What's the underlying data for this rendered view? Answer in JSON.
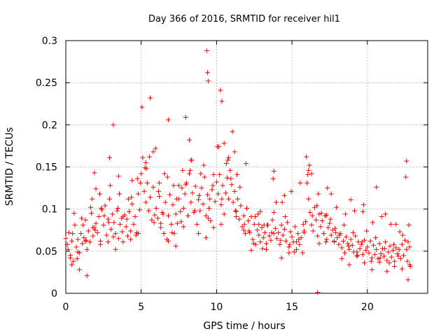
{
  "chart_data": {
    "type": "scatter",
    "title": "Day 366 of 2016, SRMTID for receiver hil1",
    "xlabel": "GPS time / hours",
    "ylabel": "SRMTID / TECUs",
    "xlim": [
      0,
      24
    ],
    "ylim": [
      0,
      0.3
    ],
    "x_ticks": [
      0,
      5,
      10,
      15,
      20
    ],
    "x_tick_labels": [
      "0",
      "5",
      "10",
      "15",
      "20"
    ],
    "y_ticks": [
      0,
      0.05,
      0.1,
      0.15,
      0.2,
      0.25,
      0.3
    ],
    "y_tick_labels": [
      "0",
      "0.05",
      "0.1",
      "0.15",
      "0.2",
      "0.25",
      "0.3"
    ],
    "grid": true,
    "marker": "+",
    "marker_color": "#ff0000",
    "series": [
      {
        "name": "SRMTID",
        "x": [
          0.0,
          0.1,
          0.2,
          0.3,
          0.4,
          0.5,
          0.6,
          0.7,
          0.8,
          0.9,
          1.0,
          1.1,
          1.2,
          1.3,
          1.4,
          1.5,
          1.6,
          1.7,
          1.8,
          1.9,
          2.0,
          2.1,
          2.2,
          2.3,
          2.4,
          2.5,
          2.6,
          2.7,
          2.8,
          2.9,
          3.0,
          3.1,
          3.2,
          3.3,
          3.4,
          3.5,
          3.6,
          3.7,
          3.8,
          3.9,
          4.0,
          4.1,
          4.2,
          4.3,
          4.4,
          4.5,
          4.6,
          4.7,
          4.8,
          4.9,
          5.0,
          5.1,
          5.2,
          5.3,
          5.4,
          5.5,
          5.6,
          5.7,
          5.8,
          5.9,
          6.0,
          6.1,
          6.2,
          6.3,
          6.4,
          6.5,
          6.6,
          6.7,
          6.8,
          6.9,
          7.0,
          7.1,
          7.2,
          7.3,
          7.4,
          7.5,
          7.6,
          7.7,
          7.8,
          7.9,
          8.0,
          8.1,
          8.2,
          8.3,
          8.4,
          8.5,
          8.6,
          8.7,
          8.8,
          8.9,
          9.0,
          9.1,
          9.2,
          9.3,
          9.4,
          9.5,
          9.6,
          9.7,
          9.8,
          9.9,
          10.0,
          10.1,
          10.2,
          10.3,
          10.4,
          10.5,
          10.6,
          10.7,
          10.8,
          10.9,
          11.0,
          11.1,
          11.2,
          11.3,
          11.4,
          11.5,
          11.6,
          11.7,
          11.8,
          11.9,
          12.0,
          12.1,
          12.2,
          12.3,
          12.4,
          12.5,
          12.6,
          12.7,
          12.8,
          12.9,
          13.0,
          13.1,
          13.2,
          13.3,
          13.4,
          13.5,
          13.6,
          13.7,
          13.8,
          13.9,
          14.0,
          14.1,
          14.2,
          14.3,
          14.4,
          14.5,
          14.6,
          14.7,
          14.8,
          14.9,
          15.0,
          15.1,
          15.2,
          15.3,
          15.4,
          15.5,
          15.6,
          15.7,
          15.8,
          15.9,
          16.0,
          16.1,
          16.2,
          16.3,
          16.4,
          16.5,
          16.6,
          16.7,
          16.8,
          16.9,
          17.0,
          17.1,
          17.2,
          17.3,
          17.4,
          17.5,
          17.6,
          17.7,
          17.8,
          17.9,
          18.0,
          18.1,
          18.2,
          18.3,
          18.4,
          18.5,
          18.6,
          18.7,
          18.8,
          18.9,
          19.0,
          19.1,
          19.2,
          19.3,
          19.4,
          19.5,
          19.6,
          19.7,
          19.8,
          19.9,
          20.0,
          20.1,
          20.2,
          20.3,
          20.4,
          20.5,
          20.6,
          20.7,
          20.8,
          20.9,
          21.0,
          21.1,
          21.2,
          21.3,
          21.4,
          21.5,
          21.6,
          21.7,
          21.8,
          21.9,
          22.0,
          22.1,
          22.2,
          22.3,
          22.4,
          22.5,
          22.6,
          22.7,
          22.8,
          0.15,
          0.45,
          0.75,
          1.05,
          1.35,
          1.65,
          1.95,
          2.25,
          2.55,
          2.85,
          3.15,
          3.45,
          3.75,
          4.05,
          4.35,
          4.65,
          4.95,
          5.25,
          5.55,
          5.85,
          6.15,
          6.45,
          6.75,
          7.05,
          7.35,
          7.65,
          7.95,
          8.25,
          8.55,
          8.85,
          9.15,
          9.45,
          9.75,
          10.05,
          10.35,
          10.65,
          10.95,
          11.25,
          11.55,
          11.85,
          12.15,
          12.45,
          12.75,
          13.05,
          13.35,
          13.65,
          13.95,
          14.25,
          14.55,
          14.85,
          15.15,
          15.45,
          15.75,
          16.05,
          16.35,
          16.65,
          16.95,
          17.25,
          17.55,
          17.85,
          18.15,
          18.45,
          18.75,
          19.05,
          19.35,
          19.65,
          19.95,
          20.25,
          20.55,
          20.85,
          21.15,
          21.45,
          21.75,
          22.05,
          22.35,
          22.65,
          0.3,
          0.8,
          1.3,
          1.8,
          2.3,
          2.8,
          3.3,
          3.8,
          4.3,
          4.8,
          5.3,
          5.8,
          6.3,
          6.8,
          7.3,
          7.8,
          8.3,
          8.8,
          9.3,
          9.8,
          10.3,
          10.8,
          11.3,
          11.8,
          12.3,
          12.8,
          13.3,
          13.8,
          14.3,
          14.8,
          15.3,
          15.8,
          16.3,
          16.8,
          17.3,
          17.8,
          18.3,
          18.8,
          19.3,
          19.8,
          20.3,
          20.8,
          21.3,
          21.8,
          22.3,
          22.8,
          0.55,
          1.15,
          1.75,
          2.35,
          2.95,
          3.55,
          4.15,
          4.75,
          5.35,
          5.95,
          6.55,
          7.15,
          7.75,
          8.35,
          8.95,
          9.55,
          10.15,
          10.75,
          11.35,
          11.95,
          12.55,
          13.15,
          13.75,
          14.35,
          14.95,
          15.55,
          16.15,
          16.75,
          17.35,
          17.95,
          18.55,
          19.15,
          19.75,
          20.35,
          20.95,
          21.55,
          22.15,
          22.75,
          5.05,
          5.6,
          7.95,
          9.35,
          9.4,
          9.45,
          10.25,
          10.35,
          11.05,
          3.15,
          16.7,
          22.6,
          22.55,
          11.2,
          10.5,
          6.8,
          8.2,
          15.95,
          16.1,
          2.0,
          1.9,
          2.9,
          3.5,
          4.4,
          6.2,
          7.5,
          12.9,
          13.8,
          14.5,
          17.6,
          18.9,
          19.7,
          20.6,
          21.2,
          21.9,
          0.4,
          0.9,
          1.4,
          22.7,
          22.85
        ],
        "y": [
          0.065,
          0.058,
          0.072,
          0.045,
          0.062,
          0.038,
          0.081,
          0.055,
          0.064,
          0.048,
          0.071,
          0.059,
          0.066,
          0.087,
          0.052,
          0.074,
          0.061,
          0.095,
          0.068,
          0.078,
          0.083,
          0.072,
          0.091,
          0.062,
          0.099,
          0.081,
          0.104,
          0.069,
          0.088,
          0.112,
          0.076,
          0.094,
          0.084,
          0.071,
          0.098,
          0.065,
          0.082,
          0.089,
          0.061,
          0.093,
          0.079,
          0.068,
          0.097,
          0.074,
          0.106,
          0.082,
          0.091,
          0.072,
          0.118,
          0.099,
          0.142,
          0.161,
          0.121,
          0.108,
          0.131,
          0.098,
          0.114,
          0.087,
          0.126,
          0.093,
          0.101,
          0.089,
          0.115,
          0.078,
          0.096,
          0.071,
          0.108,
          0.064,
          0.092,
          0.117,
          0.082,
          0.105,
          0.071,
          0.094,
          0.083,
          0.112,
          0.097,
          0.125,
          0.101,
          0.118,
          0.131,
          0.092,
          0.142,
          0.108,
          0.119,
          0.096,
          0.127,
          0.082,
          0.111,
          0.098,
          0.125,
          0.106,
          0.138,
          0.092,
          0.117,
          0.101,
          0.086,
          0.123,
          0.078,
          0.109,
          0.132,
          0.118,
          0.141,
          0.105,
          0.128,
          0.094,
          0.119,
          0.137,
          0.112,
          0.146,
          0.129,
          0.108,
          0.121,
          0.097,
          0.112,
          0.088,
          0.104,
          0.079,
          0.092,
          0.071,
          0.101,
          0.086,
          0.072,
          0.091,
          0.064,
          0.082,
          0.058,
          0.075,
          0.069,
          0.061,
          0.078,
          0.066,
          0.072,
          0.059,
          0.081,
          0.068,
          0.063,
          0.087,
          0.071,
          0.077,
          0.065,
          0.072,
          0.058,
          0.081,
          0.069,
          0.076,
          0.062,
          0.084,
          0.055,
          0.073,
          0.067,
          0.061,
          0.079,
          0.052,
          0.071,
          0.058,
          0.066,
          0.048,
          0.072,
          0.085,
          0.131,
          0.112,
          0.096,
          0.081,
          0.074,
          0.102,
          0.087,
          0.068,
          0.094,
          0.079,
          0.086,
          0.071,
          0.092,
          0.064,
          0.078,
          0.083,
          0.069,
          0.075,
          0.061,
          0.072,
          0.066,
          0.058,
          0.071,
          0.054,
          0.062,
          0.048,
          0.067,
          0.059,
          0.052,
          0.064,
          0.057,
          0.049,
          0.068,
          0.044,
          0.061,
          0.053,
          0.058,
          0.046,
          0.063,
          0.051,
          0.055,
          0.048,
          0.062,
          0.042,
          0.057,
          0.046,
          0.052,
          0.041,
          0.059,
          0.047,
          0.053,
          0.044,
          0.061,
          0.039,
          0.049,
          0.056,
          0.043,
          0.051,
          0.038,
          0.054,
          0.047,
          0.052,
          0.041,
          0.058,
          0.045,
          0.063,
          0.052,
          0.061,
          0.055,
          0.052,
          0.071,
          0.041,
          0.089,
          0.063,
          0.102,
          0.075,
          0.118,
          0.092,
          0.084,
          0.067,
          0.101,
          0.073,
          0.088,
          0.114,
          0.069,
          0.131,
          0.149,
          0.162,
          0.084,
          0.121,
          0.094,
          0.138,
          0.072,
          0.112,
          0.085,
          0.129,
          0.146,
          0.098,
          0.116,
          0.152,
          0.089,
          0.128,
          0.174,
          0.112,
          0.154,
          0.136,
          0.098,
          0.126,
          0.082,
          0.074,
          0.059,
          0.094,
          0.053,
          0.081,
          0.072,
          0.108,
          0.063,
          0.091,
          0.058,
          0.049,
          0.064,
          0.082,
          0.141,
          0.092,
          0.104,
          0.095,
          0.061,
          0.088,
          0.077,
          0.069,
          0.081,
          0.056,
          0.072,
          0.045,
          0.061,
          0.074,
          0.038,
          0.066,
          0.042,
          0.053,
          0.036,
          0.058,
          0.044,
          0.069,
          0.038,
          0.042,
          0.049,
          0.062,
          0.078,
          0.058,
          0.061,
          0.052,
          0.091,
          0.064,
          0.071,
          0.155,
          0.168,
          0.083,
          0.062,
          0.056,
          0.079,
          0.158,
          0.071,
          0.066,
          0.141,
          0.082,
          0.161,
          0.091,
          0.075,
          0.051,
          0.082,
          0.052,
          0.096,
          0.042,
          0.048,
          0.061,
          0.074,
          0.142,
          0.059,
          0.093,
          0.062,
          0.041,
          0.034,
          0.049,
          0.036,
          0.028,
          0.037,
          0.026,
          0.032,
          0.029,
          0.034,
          0.095,
          0.081,
          0.112,
          0.101,
          0.128,
          0.118,
          0.112,
          0.136,
          0.148,
          0.172,
          0.142,
          0.128,
          0.146,
          0.158,
          0.142,
          0.112,
          0.174,
          0.158,
          0.141,
          0.154,
          0.091,
          0.081,
          0.136,
          0.108,
          0.121,
          0.131,
          0.152,
          0.118,
          0.125,
          0.102,
          0.094,
          0.098,
          0.105,
          0.084,
          0.091,
          0.082,
          0.073,
          0.081,
          0.221,
          0.232,
          0.209,
          0.288,
          0.262,
          0.252,
          0.241,
          0.228,
          0.192,
          0.2,
          0.001,
          0.157,
          0.138,
          0.168,
          0.178,
          0.206,
          0.182,
          0.162,
          0.146,
          0.124,
          0.143,
          0.161,
          0.139,
          0.134,
          0.131,
          0.128,
          0.097,
          0.145,
          0.116,
          0.118,
          0.111,
          0.097,
          0.126,
          0.094,
          0.082,
          0.034,
          0.028,
          0.021,
          0.016,
          0.032
        ]
      }
    ]
  }
}
